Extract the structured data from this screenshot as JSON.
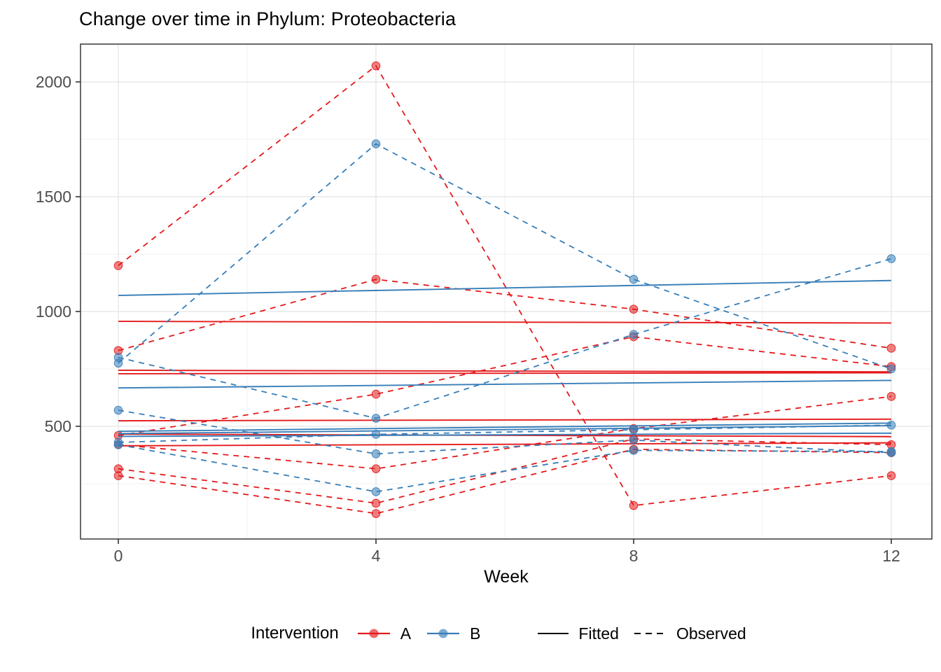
{
  "title": "Change over time in Phylum: Proteobacteria",
  "axes": {
    "x": {
      "label": "Week",
      "ticks": [
        0,
        4,
        8,
        12
      ],
      "tick_labels": [
        "0",
        "4",
        "8",
        "12"
      ],
      "minor": [
        2,
        6,
        10
      ]
    },
    "y": {
      "ticks": [
        500,
        1000,
        1500,
        2000
      ],
      "tick_labels": [
        "500",
        "1000",
        "1500",
        "2000"
      ],
      "minor": [
        250,
        750,
        1250,
        1750
      ]
    }
  },
  "legend": {
    "title": "Intervention",
    "groups": [
      {
        "label": "A",
        "color": "#e41a1c"
      },
      {
        "label": "B",
        "color": "#377eb8"
      }
    ],
    "linetypes": [
      {
        "label": "Fitted",
        "style": "solid"
      },
      {
        "label": "Observed",
        "style": "dashed"
      }
    ]
  },
  "colors": {
    "group_A": "#e41a1c",
    "group_B": "#377eb8",
    "grid_major": "#e3e3e3",
    "grid_minor": "#f1f1f1",
    "panel_border": "#2b2b2b",
    "tick_text": "#4d4d4d",
    "key_line": "#000000"
  },
  "chart_data": {
    "type": "line",
    "title": "Change over time in Phylum: Proteobacteria",
    "xlabel": "Week",
    "ylabel": "",
    "x": [
      0,
      4,
      8,
      12
    ],
    "xlim": [
      -0.6,
      12.63
    ],
    "ylim": [
      9,
      2165
    ],
    "grid": "major+minor",
    "legend_position": "bottom",
    "series_meaning": "Each subject has 4 dashed 'observed' points (weeks 0,4,8,12) and a nearly-flat solid 'fitted' line (value at week0 -> week12).",
    "series": [
      {
        "subject": "A1",
        "group": "A",
        "observed": [
          1200,
          2070,
          155,
          285
        ],
        "fitted": [
          957,
          950
        ]
      },
      {
        "subject": "A2",
        "group": "A",
        "observed": [
          830,
          1140,
          1010,
          840
        ],
        "fitted": [
          744,
          737
        ]
      },
      {
        "subject": "A3",
        "group": "A",
        "observed": [
          460,
          640,
          890,
          760
        ],
        "fitted": [
          729,
          733
        ]
      },
      {
        "subject": "A4",
        "group": "A",
        "observed": [
          420,
          315,
          490,
          630
        ],
        "fitted": [
          524,
          531
        ]
      },
      {
        "subject": "A5",
        "group": "A",
        "observed": [
          315,
          165,
          445,
          420
        ],
        "fitted": [
          466,
          455
        ]
      },
      {
        "subject": "A6",
        "group": "A",
        "observed": [
          285,
          120,
          400,
          385
        ],
        "fitted": [
          415,
          428
        ]
      },
      {
        "subject": "B1",
        "group": "B",
        "observed": [
          775,
          1730,
          1140,
          750
        ],
        "fitted": [
          1070,
          1135
        ]
      },
      {
        "subject": "B2",
        "group": "B",
        "observed": [
          800,
          535,
          900,
          1230
        ],
        "fitted": [
          667,
          700
        ]
      },
      {
        "subject": "B3",
        "group": "B",
        "observed": [
          570,
          380,
          440,
          385
        ],
        "fitted": [
          478,
          514
        ]
      },
      {
        "subject": "B4",
        "group": "B",
        "observed": [
          430,
          465,
          485,
          505
        ],
        "fitted": [
          468,
          503
        ]
      },
      {
        "subject": "B5",
        "group": "B",
        "observed": [
          420,
          215,
          395,
          390
        ],
        "fitted": [
          456,
          470
        ]
      }
    ]
  }
}
